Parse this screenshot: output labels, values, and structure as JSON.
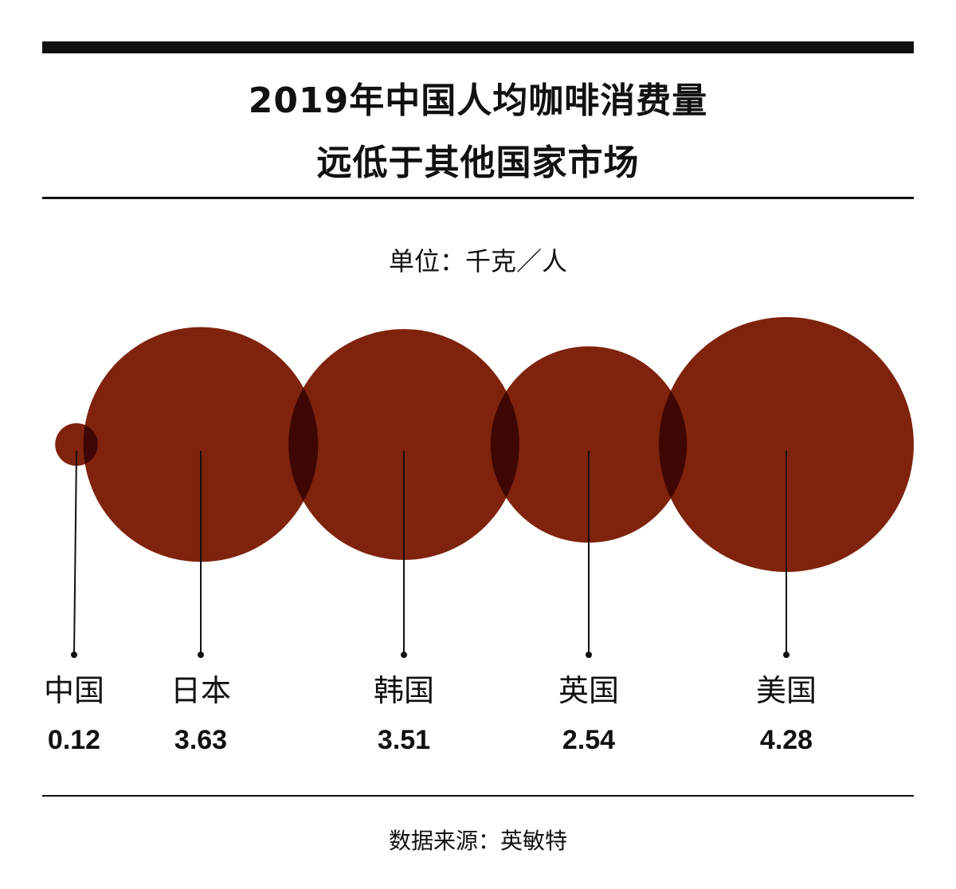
{
  "title": {
    "line1": "2019年中国人均咖啡消费量",
    "line2": "远低于其他国家市场"
  },
  "unit_label": "单位：千克／人",
  "source_label": "数据来源：英敏特",
  "colors": {
    "bubble": "#7f230c",
    "overlap": "#3f0703",
    "ink": "#111111"
  },
  "chart_data": {
    "type": "bubble",
    "categories": [
      "中国",
      "日本",
      "韩国",
      "英国",
      "美国"
    ],
    "values": [
      0.12,
      3.63,
      3.51,
      2.54,
      4.28
    ],
    "value_labels": [
      "0.12",
      "3.63",
      "3.51",
      "2.54",
      "4.28"
    ],
    "ylabel": "单位：千克／人",
    "title": "2019年中国人均咖啡消费量 远低于其他国家市场"
  }
}
